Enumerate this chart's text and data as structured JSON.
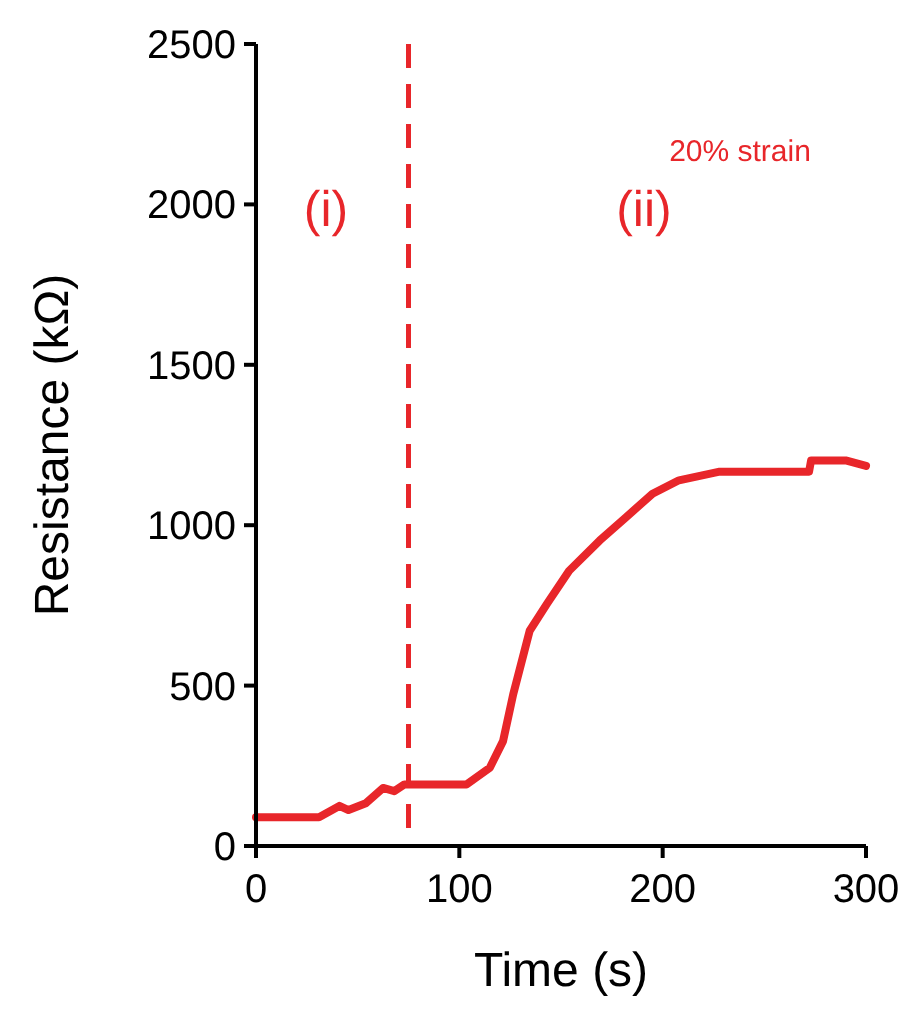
{
  "chart_data": {
    "type": "line",
    "xlabel": "Time (s)",
    "ylabel": "Resistance (kΩ)",
    "xlim": [
      0,
      300
    ],
    "xticks": [
      0,
      100,
      200,
      300
    ],
    "ylim": [
      0,
      2500
    ],
    "yticks": [
      0,
      500,
      1000,
      1500,
      2000,
      2500
    ],
    "grid": false,
    "marker": "none",
    "line_style": "solid",
    "series": [
      {
        "color": "#e8262a",
        "x": [
          0,
          31,
          41,
          45.5,
          54,
          62.5,
          68,
          73,
          103.5,
          115,
          121.5,
          126.5,
          134.6,
          143,
          154,
          169,
          182,
          195,
          208,
          228,
          272,
          273,
          290,
          300
        ],
        "values": [
          90,
          90,
          125,
          112,
          133,
          181,
          171,
          192,
          192,
          244,
          327,
          473,
          671,
          754,
          858,
          952,
          1025,
          1098,
          1140,
          1167,
          1167,
          1202,
          1202,
          1185
        ]
      }
    ],
    "ref_lines": [
      {
        "axis": "x",
        "value": 75,
        "color": "#e8262a",
        "line_style": "dashed"
      }
    ],
    "annotations": [
      "(i)",
      "(ii)",
      "20% strain"
    ]
  }
}
